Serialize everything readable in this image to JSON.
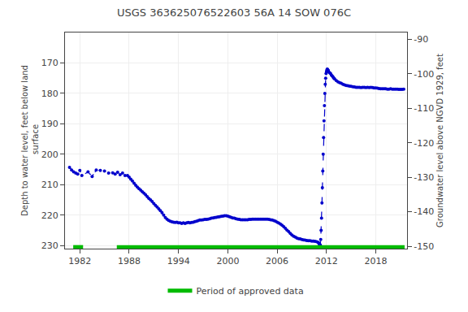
{
  "chart_data": {
    "type": "line",
    "title": "USGS 363625076522603 56A 14 SOW 076C",
    "ylabel": "Depth to water level, feet below land\n surface",
    "y2label": "Groundwater level above NGVD 1929, feet",
    "xlim": [
      1980.2,
      2021.8
    ],
    "xticks": [
      1982,
      1988,
      1994,
      2000,
      2006,
      2012,
      2018
    ],
    "ylim": [
      231,
      160
    ],
    "yticks": [
      170,
      180,
      190,
      200,
      210,
      220,
      230
    ],
    "y2lim": [
      -150.7,
      -88
    ],
    "y2ticks": [
      -90,
      -100,
      -110,
      -120,
      -130,
      -140,
      -150
    ],
    "grid": true,
    "legend": "bottom",
    "series": [
      {
        "color": "#0000cc",
        "line_style": "dotted",
        "marker": "dot",
        "x": [
          1980.75,
          1981.0,
          1981.25,
          1981.5,
          1981.75,
          1982.0,
          1982.25,
          1983.0,
          1983.5,
          1984.0,
          1984.5,
          1985.0,
          1985.5,
          1986.0,
          1986.3,
          1986.6,
          1986.9,
          1987.2,
          1987.5,
          1987.8,
          1988.0,
          1988.2,
          1988.4,
          1988.6,
          1988.8,
          1989.0,
          1989.2,
          1989.4,
          1989.6,
          1989.8,
          1990.0,
          1990.2,
          1990.4,
          1990.6,
          1990.8,
          1991.0,
          1991.2,
          1991.4,
          1991.6,
          1991.8,
          1992.0,
          1992.2,
          1992.4,
          1992.6,
          1992.8,
          1993.0,
          1993.2,
          1993.4,
          1993.6,
          1993.8,
          1994.0,
          1994.2,
          1994.4,
          1994.6,
          1994.8,
          1995.0,
          1995.2,
          1995.4,
          1995.6,
          1995.8,
          1996.0,
          1996.2,
          1996.4,
          1996.6,
          1996.8,
          1997.0,
          1997.2,
          1997.4,
          1997.6,
          1997.8,
          1998.0,
          1998.2,
          1998.4,
          1998.6,
          1998.8,
          1999.0,
          1999.2,
          1999.4,
          1999.6,
          1999.8,
          2000.0,
          2000.2,
          2000.4,
          2000.6,
          2000.8,
          2001.0,
          2001.2,
          2001.4,
          2001.6,
          2001.8,
          2002.0,
          2002.2,
          2002.4,
          2002.6,
          2002.8,
          2003.0,
          2003.2,
          2003.4,
          2003.6,
          2003.8,
          2004.0,
          2004.2,
          2004.4,
          2004.6,
          2004.8,
          2005.0,
          2005.2,
          2005.4,
          2005.6,
          2005.8,
          2006.0,
          2006.2,
          2006.4,
          2006.6,
          2006.8,
          2007.0,
          2007.2,
          2007.4,
          2007.6,
          2007.8,
          2008.0,
          2008.2,
          2008.4,
          2008.6,
          2008.8,
          2009.0,
          2009.2,
          2009.4,
          2009.6,
          2009.8,
          2010.0,
          2010.2,
          2010.4,
          2010.6,
          2010.8,
          2011.0
        ],
        "values": [
          204.3,
          205.2,
          205.8,
          206.2,
          206.5,
          205.3,
          207.0,
          205.8,
          207.3,
          205.2,
          205.3,
          205.5,
          206.2,
          206.1,
          206.5,
          205.9,
          206.7,
          206.2,
          207.0,
          207.0,
          207.5,
          208.2,
          208.8,
          209.5,
          210.2,
          210.8,
          211.3,
          211.8,
          212.3,
          212.8,
          213.3,
          213.9,
          214.5,
          215.0,
          215.5,
          216.2,
          216.8,
          217.3,
          217.9,
          218.5,
          219.2,
          220.0,
          220.8,
          221.3,
          221.7,
          222.0,
          222.2,
          222.3,
          222.4,
          222.3,
          222.5,
          222.5,
          222.7,
          222.5,
          222.7,
          222.5,
          222.4,
          222.5,
          222.4,
          222.3,
          222.1,
          222.0,
          221.8,
          221.6,
          221.6,
          221.5,
          221.4,
          221.4,
          221.3,
          221.2,
          221.0,
          220.9,
          220.8,
          220.7,
          220.6,
          220.5,
          220.4,
          220.3,
          220.2,
          220.2,
          220.3,
          220.5,
          220.7,
          220.9,
          221.0,
          221.2,
          221.3,
          221.4,
          221.5,
          221.5,
          221.5,
          221.5,
          221.5,
          221.4,
          221.4,
          221.3,
          221.3,
          221.3,
          221.3,
          221.3,
          221.3,
          221.3,
          221.3,
          221.3,
          221.3,
          221.4,
          221.5,
          221.6,
          221.8,
          222.0,
          222.3,
          222.6,
          222.9,
          223.3,
          223.8,
          224.3,
          224.9,
          225.4,
          226.0,
          226.5,
          226.9,
          227.2,
          227.5,
          227.7,
          227.8,
          228.0,
          228.1,
          228.2,
          228.3,
          228.4,
          228.4,
          228.5,
          228.5,
          228.6,
          228.7,
          229.0
        ]
      },
      {
        "color": "#0000cc",
        "line_style": "dashed",
        "marker": "dot",
        "x": [
          2011.0,
          2011.1,
          2011.15,
          2011.2,
          2011.25,
          2011.3,
          2011.35,
          2011.4,
          2011.45,
          2011.5,
          2011.55,
          2011.6,
          2011.65,
          2011.7,
          2011.75,
          2011.8,
          2011.85,
          2011.9,
          2011.95,
          2012.0,
          2012.05,
          2012.1,
          2012.15,
          2012.2
        ],
        "values": [
          229.0,
          229.3,
          229.5,
          229.7,
          229.8,
          228.0,
          225.0,
          221.0,
          216.0,
          211.0,
          205.5,
          200.0,
          194.5,
          189.0,
          184.0,
          180.0,
          177.0,
          175.0,
          173.5,
          172.8,
          172.3,
          172.0,
          172.2,
          172.5
        ]
      },
      {
        "color": "#0000cc",
        "line_style": "dotted",
        "marker": "dot",
        "x": [
          2012.2,
          2012.3,
          2012.4,
          2012.5,
          2012.6,
          2012.7,
          2012.8,
          2012.9,
          2013.0,
          2013.2,
          2013.4,
          2013.6,
          2013.8,
          2014.0,
          2014.2,
          2014.4,
          2014.6,
          2014.8,
          2015.0,
          2015.2,
          2015.4,
          2015.6,
          2015.8,
          2016.0,
          2016.2,
          2016.4,
          2016.6,
          2016.8,
          2017.0,
          2017.2,
          2017.4,
          2017.6,
          2017.8,
          2018.0,
          2018.2,
          2018.4,
          2018.6,
          2018.8,
          2019.0,
          2019.2,
          2019.4,
          2019.6,
          2019.8,
          2020.0,
          2020.2,
          2020.4,
          2020.6,
          2020.8,
          2021.0,
          2021.2,
          2021.4
        ],
        "values": [
          172.5,
          173.0,
          173.3,
          173.5,
          174.0,
          174.3,
          174.6,
          175.0,
          175.3,
          175.8,
          176.2,
          176.5,
          176.7,
          177.0,
          177.2,
          177.4,
          177.5,
          177.6,
          177.7,
          177.8,
          177.9,
          178.0,
          178.0,
          178.0,
          178.1,
          178.0,
          178.0,
          178.1,
          178.0,
          178.1,
          178.0,
          178.1,
          178.2,
          178.2,
          178.3,
          178.4,
          178.5,
          178.5,
          178.5,
          178.5,
          178.6,
          178.6,
          178.5,
          178.6,
          178.6,
          178.6,
          178.6,
          178.7,
          178.7,
          178.7,
          178.6
        ]
      },
      {
        "name": "Period of approved data",
        "color": "#00bb00",
        "line_style": "solid",
        "x": [
          1981.2,
          1982.4,
          null,
          1986.5,
          2021.5
        ],
        "values": [
          230.5,
          230.5,
          null,
          230.5,
          230.5
        ]
      }
    ]
  }
}
